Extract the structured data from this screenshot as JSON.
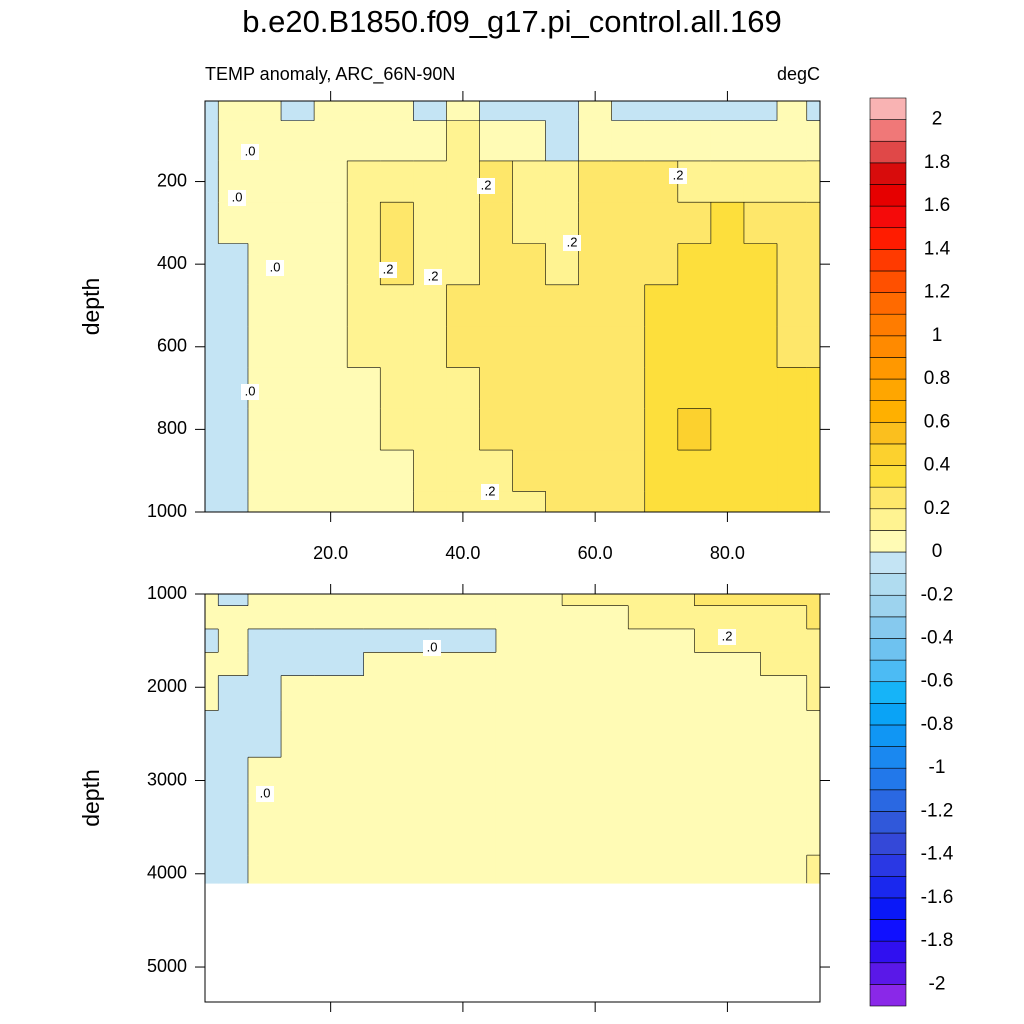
{
  "chart_data": [
    {
      "type": "contour",
      "title": "b.e20.B1850.f09_g17.pi_control.all.169",
      "subtitle": "TEMP anomaly, ARC_66N-90N",
      "units": "degC",
      "ylabel": "depth",
      "xlim": [
        1,
        94
      ],
      "ylim": [
        5,
        1000
      ],
      "xticks": [
        {
          "value": 20,
          "label": "20.0"
        },
        {
          "value": 40,
          "label": "40.0"
        },
        {
          "value": 60,
          "label": "60.0"
        },
        {
          "value": 80,
          "label": "80.0"
        }
      ],
      "yticks": [
        200,
        400,
        600,
        800,
        1000
      ],
      "x": [
        1,
        5,
        10,
        15,
        20,
        25,
        30,
        35,
        40,
        45,
        50,
        55,
        60,
        65,
        70,
        75,
        80,
        85,
        90,
        94
      ],
      "depth": [
        5,
        100,
        200,
        300,
        400,
        500,
        600,
        700,
        800,
        900,
        1000
      ],
      "z": [
        [
          -0.05,
          0.05,
          0.05,
          -0.05,
          0.05,
          0.05,
          0.05,
          -0.05,
          0.05,
          -0.05,
          -0.05,
          -0.05,
          0.05,
          -0.05,
          -0.05,
          -0.05,
          -0.05,
          -0.05,
          0.05,
          -0.05
        ],
        [
          -0.05,
          0.05,
          0.05,
          0.05,
          0.05,
          0.05,
          0.05,
          0.05,
          0.15,
          0.05,
          0.05,
          -0.05,
          0.05,
          0.05,
          0.05,
          0.05,
          0.05,
          0.05,
          0.05,
          0.05
        ],
        [
          -0.1,
          0.05,
          0.05,
          0.05,
          0.05,
          0.15,
          0.15,
          0.15,
          0.15,
          0.25,
          0.15,
          0.15,
          0.25,
          0.25,
          0.25,
          0.15,
          0.15,
          0.15,
          0.15,
          0.15
        ],
        [
          -0.1,
          0.05,
          0.05,
          0.05,
          0.05,
          0.15,
          0.25,
          0.15,
          0.15,
          0.25,
          0.15,
          0.15,
          0.25,
          0.25,
          0.25,
          0.25,
          0.35,
          0.25,
          0.25,
          0.25
        ],
        [
          -0.1,
          -0.05,
          0.05,
          0.05,
          0.05,
          0.15,
          0.25,
          0.15,
          0.15,
          0.25,
          0.25,
          0.15,
          0.25,
          0.25,
          0.25,
          0.35,
          0.35,
          0.35,
          0.25,
          0.25
        ],
        [
          -0.1,
          -0.05,
          0.05,
          0.05,
          0.05,
          0.15,
          0.15,
          0.15,
          0.25,
          0.25,
          0.25,
          0.25,
          0.25,
          0.25,
          0.35,
          0.35,
          0.35,
          0.35,
          0.25,
          0.25
        ],
        [
          -0.1,
          -0.05,
          0.05,
          0.05,
          0.05,
          0.15,
          0.15,
          0.15,
          0.25,
          0.25,
          0.25,
          0.25,
          0.25,
          0.25,
          0.35,
          0.35,
          0.35,
          0.35,
          0.25,
          0.25
        ],
        [
          -0.1,
          -0.05,
          0.05,
          0.05,
          0.05,
          0.05,
          0.15,
          0.15,
          0.15,
          0.25,
          0.25,
          0.25,
          0.25,
          0.25,
          0.35,
          0.35,
          0.35,
          0.35,
          0.35,
          0.35
        ],
        [
          -0.1,
          -0.05,
          0.05,
          0.05,
          0.05,
          0.05,
          0.15,
          0.15,
          0.15,
          0.25,
          0.25,
          0.25,
          0.25,
          0.25,
          0.35,
          0.45,
          0.35,
          0.35,
          0.35,
          0.35
        ],
        [
          -0.1,
          -0.05,
          0.05,
          0.05,
          0.05,
          0.05,
          0.05,
          0.15,
          0.15,
          0.15,
          0.25,
          0.25,
          0.25,
          0.25,
          0.35,
          0.35,
          0.35,
          0.35,
          0.35,
          0.35
        ],
        [
          -0.05,
          -0.05,
          0.05,
          0.05,
          0.05,
          0.05,
          0.05,
          0.15,
          0.15,
          0.15,
          0.15,
          0.25,
          0.25,
          0.25,
          0.35,
          0.35,
          0.35,
          0.35,
          0.35,
          0.35
        ]
      ],
      "contour_labels": [
        ".0",
        ".0",
        ".0",
        ".0",
        ".2",
        ".2",
        ".2",
        ".2",
        ".2",
        ".2"
      ]
    },
    {
      "type": "contour",
      "ylabel": "depth",
      "xlim": [
        1,
        94
      ],
      "ylim": [
        1000,
        5375
      ],
      "xticks": [
        20,
        40,
        60,
        80
      ],
      "show_xtick_labels": false,
      "yticks": [
        1000,
        2000,
        3000,
        4000,
        5000
      ],
      "x": [
        1,
        5,
        10,
        15,
        20,
        30,
        40,
        50,
        60,
        70,
        80,
        90,
        94
      ],
      "depth": [
        1000,
        1250,
        1500,
        1750,
        2000,
        2500,
        3000,
        3500,
        4100
      ],
      "z": [
        [
          0.05,
          -0.05,
          0.05,
          0.05,
          0.05,
          0.05,
          0.05,
          0.05,
          0.15,
          0.15,
          0.25,
          0.25,
          0.25
        ],
        [
          0.05,
          0.05,
          0.05,
          0.05,
          0.05,
          0.05,
          0.05,
          0.05,
          0.05,
          0.15,
          0.15,
          0.15,
          0.25
        ],
        [
          -0.05,
          0.05,
          -0.05,
          -0.05,
          -0.05,
          -0.05,
          -0.05,
          0.05,
          0.05,
          0.05,
          0.15,
          0.15,
          0.15
        ],
        [
          0.05,
          0.05,
          -0.05,
          -0.05,
          -0.05,
          0.05,
          0.05,
          0.05,
          0.05,
          0.05,
          0.05,
          0.15,
          0.15
        ],
        [
          0.05,
          -0.05,
          -0.05,
          0.05,
          0.05,
          0.05,
          0.05,
          0.05,
          0.05,
          0.05,
          0.05,
          0.05,
          0.15
        ],
        [
          -0.05,
          -0.05,
          -0.05,
          0.05,
          0.05,
          0.05,
          0.05,
          0.05,
          0.05,
          0.05,
          0.05,
          0.05,
          0.05
        ],
        [
          -0.05,
          -0.05,
          0.05,
          0.05,
          0.05,
          0.05,
          0.05,
          0.05,
          0.05,
          0.05,
          0.05,
          0.05,
          0.05
        ],
        [
          -0.05,
          -0.05,
          0.05,
          0.05,
          0.05,
          0.05,
          0.05,
          0.05,
          0.05,
          0.05,
          0.05,
          0.05,
          0.05
        ],
        [
          -0.05,
          -0.05,
          0.05,
          0.05,
          0.05,
          0.05,
          0.05,
          0.05,
          0.05,
          0.05,
          0.05,
          0.05,
          0.15
        ]
      ],
      "contour_labels": [
        ".0",
        ".2",
        ".0"
      ]
    }
  ],
  "colorbar": {
    "levels": [
      -2,
      -1.9,
      -1.8,
      -1.7,
      -1.6,
      -1.5,
      -1.4,
      -1.3,
      -1.2,
      -1.1,
      -1,
      -0.9,
      -0.8,
      -0.7,
      -0.6,
      -0.5,
      -0.4,
      -0.3,
      -0.2,
      -0.1,
      0,
      0.1,
      0.2,
      0.3,
      0.4,
      0.5,
      0.6,
      0.7,
      0.8,
      0.9,
      1,
      1.1,
      1.2,
      1.3,
      1.4,
      1.5,
      1.6,
      1.7,
      1.8,
      1.9,
      2
    ],
    "colors": [
      "#8a28e8",
      "#5a18e8",
      "#3010f0",
      "#1010ff",
      "#0a18f8",
      "#1a28ee",
      "#2a38e4",
      "#3448d8",
      "#3058da",
      "#2a68e2",
      "#2278ea",
      "#1a88f0",
      "#1096f4",
      "#0aa3f6",
      "#16b4f8",
      "#4cbbf4",
      "#6ec2f0",
      "#86c9ee",
      "#9dd3ee",
      "#b0dcf0",
      "#c4e4f4",
      "#fffbb5",
      "#fff391",
      "#fee76a",
      "#fddf3c",
      "#fcd12e",
      "#fbbf1e",
      "#ffb000",
      "#ffa600",
      "#ff9800",
      "#ff8a00",
      "#ff7c00",
      "#ff6a00",
      "#ff5000",
      "#ff3a00",
      "#ff1c00",
      "#f50a0a",
      "#e60000",
      "#d80c0c",
      "#e04848",
      "#f07878",
      "#f9b3b3"
    ],
    "ticks": [
      -2,
      -1.8,
      -1.6,
      -1.4,
      -1.2,
      -1,
      -0.8,
      -0.6,
      -0.4,
      -0.2,
      0,
      0.2,
      0.4,
      0.6,
      0.8,
      1,
      1.2,
      1.4,
      1.6,
      1.8,
      2
    ]
  }
}
